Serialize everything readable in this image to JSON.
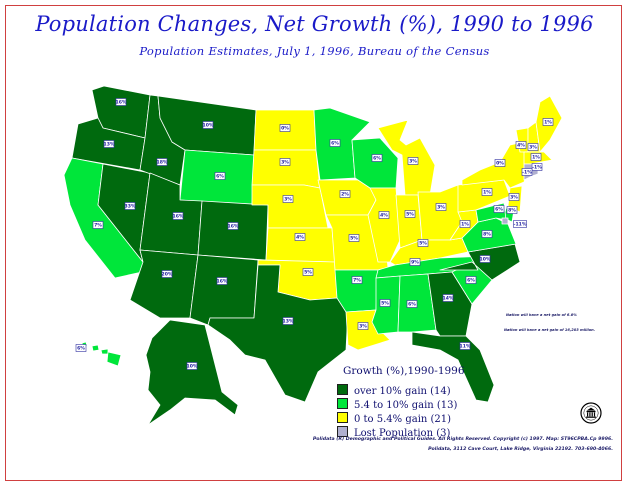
{
  "title": "Population Changes, Net Growth (%), 1990 to 1996",
  "subtitle": "Population Estimates, July 1, 1996, Bureau of the Census",
  "colors": {
    "over_10": "#006a0e",
    "from_5_4_to_10": "#00e63a",
    "from_0_to_5_4": "#ffff00",
    "lost": "#b0b0d0"
  },
  "legend": {
    "title": "Growth (%),1990-1996",
    "items": [
      {
        "key": "over_10",
        "label": "over 10% gain (14)"
      },
      {
        "key": "from_5_4_to_10",
        "label": "5.4 to 10% gain (13)"
      },
      {
        "key": "from_0_to_5_4",
        "label": "0 to 5.4% gain (21)"
      },
      {
        "key": "lost",
        "label": "Lost Population (3)"
      }
    ]
  },
  "notes": {
    "nation_growth": "Nation will have a net gain of 6.8%",
    "nation_gain": "Nation will have a net gain of 16,203 million."
  },
  "footer": {
    "line1": "Polidata (R) Demographic and Political Guides. All Rights Reserved. Copyright (c) 1997. Map: ST96CPBA.Cp 9996.",
    "line2": "Polidata, 3112 Cave Court, Lake Ridge, Virginia 22192. 703-690-4066."
  },
  "seal_icon": "census-seal-icon",
  "states": [
    {
      "id": "WA",
      "cat": "over_10",
      "label": "16%"
    },
    {
      "id": "OR",
      "cat": "over_10",
      "label": "13%"
    },
    {
      "id": "CA",
      "cat": "from_5_4_to_10",
      "label": "7%"
    },
    {
      "id": "NV",
      "cat": "over_10",
      "label": "33%"
    },
    {
      "id": "ID",
      "cat": "over_10",
      "label": "18%"
    },
    {
      "id": "MT",
      "cat": "over_10",
      "label": "10%"
    },
    {
      "id": "WY",
      "cat": "from_5_4_to_10",
      "label": "6%"
    },
    {
      "id": "UT",
      "cat": "over_10",
      "label": "16%"
    },
    {
      "id": "AZ",
      "cat": "over_10",
      "label": "20%"
    },
    {
      "id": "CO",
      "cat": "over_10",
      "label": "16%"
    },
    {
      "id": "NM",
      "cat": "over_10",
      "label": "16%"
    },
    {
      "id": "ND",
      "cat": "from_0_to_5_4",
      "label": "0%"
    },
    {
      "id": "SD",
      "cat": "from_0_to_5_4",
      "label": "3%"
    },
    {
      "id": "NE",
      "cat": "from_0_to_5_4",
      "label": "3%"
    },
    {
      "id": "KS",
      "cat": "from_0_to_5_4",
      "label": "4%"
    },
    {
      "id": "OK",
      "cat": "from_0_to_5_4",
      "label": "5%"
    },
    {
      "id": "TX",
      "cat": "over_10",
      "label": "13%"
    },
    {
      "id": "MN",
      "cat": "from_5_4_to_10",
      "label": "6%"
    },
    {
      "id": "IA",
      "cat": "from_0_to_5_4",
      "label": "2%"
    },
    {
      "id": "MO",
      "cat": "from_0_to_5_4",
      "label": "5%"
    },
    {
      "id": "AR",
      "cat": "from_5_4_to_10",
      "label": "7%"
    },
    {
      "id": "LA",
      "cat": "from_0_to_5_4",
      "label": "3%"
    },
    {
      "id": "WI",
      "cat": "from_5_4_to_10",
      "label": "6%"
    },
    {
      "id": "IL",
      "cat": "from_0_to_5_4",
      "label": "4%"
    },
    {
      "id": "MI",
      "cat": "from_0_to_5_4",
      "label": "3%"
    },
    {
      "id": "IN",
      "cat": "from_0_to_5_4",
      "label": "5%"
    },
    {
      "id": "OH",
      "cat": "from_0_to_5_4",
      "label": "3%"
    },
    {
      "id": "KY",
      "cat": "from_0_to_5_4",
      "label": "5%"
    },
    {
      "id": "TN",
      "cat": "from_5_4_to_10",
      "label": "9%"
    },
    {
      "id": "MS",
      "cat": "from_5_4_to_10",
      "label": "5%"
    },
    {
      "id": "AL",
      "cat": "from_5_4_to_10",
      "label": "6%"
    },
    {
      "id": "GA",
      "cat": "over_10",
      "label": "14%"
    },
    {
      "id": "FL",
      "cat": "over_10",
      "label": "11%"
    },
    {
      "id": "SC",
      "cat": "from_5_4_to_10",
      "label": "6%"
    },
    {
      "id": "NC",
      "cat": "over_10",
      "label": "10%"
    },
    {
      "id": "VA",
      "cat": "from_5_4_to_10",
      "label": "8%"
    },
    {
      "id": "WV",
      "cat": "from_0_to_5_4",
      "label": "1%"
    },
    {
      "id": "PA",
      "cat": "from_0_to_5_4",
      "label": "1%"
    },
    {
      "id": "NY",
      "cat": "from_0_to_5_4",
      "label": "0%"
    },
    {
      "id": "VT",
      "cat": "from_0_to_5_4",
      "label": "4%"
    },
    {
      "id": "NH",
      "cat": "from_0_to_5_4",
      "label": "3%"
    },
    {
      "id": "ME",
      "cat": "from_0_to_5_4",
      "label": "1%"
    },
    {
      "id": "MA",
      "cat": "from_0_to_5_4",
      "label": "1%"
    },
    {
      "id": "RI",
      "cat": "lost",
      "label": "-1%"
    },
    {
      "id": "CT",
      "cat": "lost",
      "label": "-1%"
    },
    {
      "id": "NJ",
      "cat": "from_0_to_5_4",
      "label": "3%"
    },
    {
      "id": "DE",
      "cat": "from_5_4_to_10",
      "label": "8%"
    },
    {
      "id": "MD",
      "cat": "from_5_4_to_10",
      "label": "6%"
    },
    {
      "id": "DC",
      "cat": "lost",
      "label": "-11%"
    },
    {
      "id": "AK",
      "cat": "over_10",
      "label": "10%"
    },
    {
      "id": "HI",
      "cat": "from_5_4_to_10",
      "label": "6%"
    }
  ]
}
